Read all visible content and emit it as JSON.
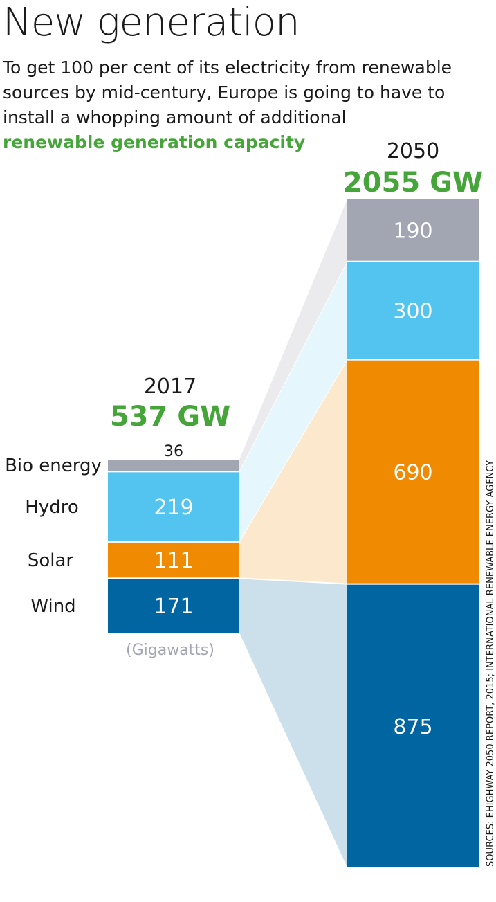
{
  "title": "New generation",
  "intro": {
    "text": "To get 100 per cent of its electricity from renewable sources by mid-century, Europe is going to have to install a whopping amount of additional",
    "highlight": "renewable generation capacity"
  },
  "source": "SOURCES: EHIGHWAY 2050 REPORT, 2015; INTERNATIONAL RENEWABLE ENERGY AGENCY",
  "colors": {
    "bio": "#a2a5b2",
    "hydro": "#53c3ef",
    "solar": "#f08a00",
    "wind": "#0065a0",
    "accent": "#45a539"
  },
  "chart_data": {
    "type": "bar",
    "stacked": true,
    "unit": "(Gigawatts)",
    "categories": [
      "2017",
      "2050"
    ],
    "totals": [
      "537 GW",
      "2055 GW"
    ],
    "series": [
      {
        "name": "Bio energy",
        "key": "bio",
        "values": [
          36,
          190
        ]
      },
      {
        "name": "Hydro",
        "key": "hydro",
        "values": [
          219,
          300
        ]
      },
      {
        "name": "Solar",
        "key": "solar",
        "values": [
          111,
          690
        ]
      },
      {
        "name": "Wind",
        "key": "wind",
        "values": [
          171,
          875
        ]
      }
    ]
  }
}
